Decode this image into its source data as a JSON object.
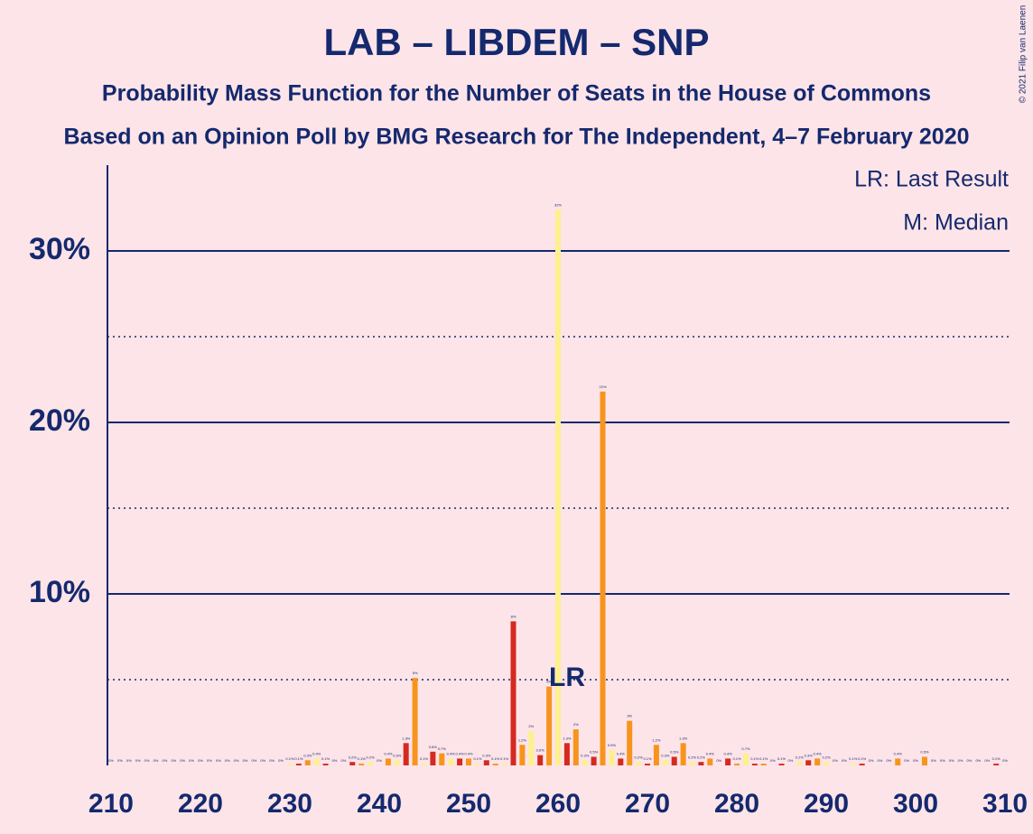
{
  "chart_data": {
    "type": "bar",
    "title": "LAB – LIBDEM – SNP",
    "subtitle": "Probability Mass Function for the Number of Seats in the House of Commons",
    "subtitle2": "Based on an Opinion Poll by BMG Research for The Independent, 4–7 February 2020",
    "copyright": "© 2021 Filip van Laenen",
    "legend": [
      "LR: Last Result",
      "M: Median"
    ],
    "annotations": [
      {
        "text": "LR",
        "x": 260
      }
    ],
    "xlim": [
      209.6,
      310.5
    ],
    "xticks": [
      210,
      220,
      230,
      240,
      250,
      260,
      270,
      280,
      290,
      300,
      310
    ],
    "ylim": [
      0,
      35
    ],
    "yticks": [
      {
        "value": 10,
        "label": "10%"
      },
      {
        "value": 20,
        "label": "20%"
      },
      {
        "value": 30,
        "label": "30%"
      }
    ],
    "minor_gridlines": [
      5,
      15,
      25
    ],
    "grid": true,
    "series": [
      {
        "color": "#d42a20",
        "x": [
          210,
          213,
          216,
          219,
          222,
          225,
          228,
          231,
          234,
          237,
          240,
          243,
          246,
          249,
          252,
          255,
          258,
          261,
          264,
          267,
          270,
          273,
          276,
          279,
          282,
          285,
          288,
          291,
          294,
          297,
          300,
          303,
          306,
          309
        ],
        "values": [
          0,
          0,
          0,
          0,
          0,
          0,
          0,
          0.1,
          0.1,
          0.2,
          0,
          1.3,
          0.8,
          0.4,
          0.3,
          8.4,
          0.6,
          1.3,
          0.5,
          0.4,
          0.1,
          0.5,
          0.2,
          0.4,
          0.1,
          0.1,
          0.3,
          0,
          0.1,
          0,
          0,
          0,
          0,
          0.1
        ],
        "value_labels": [
          "0%",
          "0%",
          "0%",
          "0%",
          "0%",
          "0%",
          "0%",
          "0.1%",
          "0.1%",
          "0.2%",
          "0%",
          "1.3%",
          "0.8%",
          "0.4%",
          "0.3%",
          "8%",
          "0.6%",
          "1.3%",
          "0.5%",
          "0.4%",
          "0.1%",
          "0.5%",
          "0.2%",
          "0.4%",
          "0.1%",
          "0.1%",
          "0.3%",
          "0%",
          "0.1%",
          "0%",
          "0%",
          "0%",
          "0%",
          "0.1%"
        ]
      },
      {
        "color": "#f7941d",
        "x": [
          211,
          214,
          217,
          220,
          223,
          226,
          229,
          232,
          235,
          238,
          241,
          244,
          247,
          250,
          253,
          256,
          259,
          262,
          265,
          268,
          271,
          274,
          277,
          280,
          283,
          286,
          289,
          292,
          295,
          298,
          301,
          304,
          307,
          310
        ],
        "values": [
          0,
          0,
          0,
          0,
          0,
          0,
          0,
          0.3,
          0,
          0.1,
          0.4,
          5.1,
          0.7,
          0.4,
          0.1,
          1.2,
          4.6,
          2.1,
          21.8,
          2.6,
          1.2,
          1.3,
          0.4,
          0.1,
          0.1,
          0,
          0.4,
          0,
          0,
          0.4,
          0.5,
          0,
          0,
          0
        ],
        "value_labels": [
          "0%",
          "0%",
          "0%",
          "0%",
          "0%",
          "0%",
          "0%",
          "0.3%",
          "0%",
          "0.1%",
          "0.4%",
          "5%",
          "0.7%",
          "0.4%",
          "0.1%",
          "1.2%",
          "5%",
          "2%",
          "22%",
          "3%",
          "1.2%",
          "1.3%",
          "0.4%",
          "0.1%",
          "0.1%",
          "0%",
          "0.4%",
          "0%",
          "0%",
          "0.4%",
          "0.5%",
          "0%",
          "0%",
          "0%"
        ]
      },
      {
        "color": "#fdf08e",
        "x": [
          212,
          215,
          218,
          221,
          224,
          227,
          230,
          233,
          236,
          239,
          242,
          245,
          248,
          251,
          254,
          257,
          260,
          263,
          266,
          269,
          272,
          275,
          278,
          281,
          284,
          287,
          290,
          293,
          296,
          299,
          302,
          305,
          308
        ],
        "values": [
          0,
          0,
          0,
          0,
          0,
          0,
          0.1,
          0.4,
          0,
          0.2,
          0.3,
          0.1,
          0.4,
          0.1,
          0.1,
          2,
          32.4,
          0.3,
          0.9,
          0.2,
          0.3,
          0.2,
          0,
          0.7,
          0,
          0.2,
          0.2,
          0.1,
          0,
          0,
          0,
          0,
          0
        ],
        "value_labels": [
          "0%",
          "0%",
          "0%",
          "0%",
          "0%",
          "0%",
          "0.1%",
          "0.4%",
          "0%",
          "0.2%",
          "0.3%",
          "0.1%",
          "0.4%",
          "0.1%",
          "0.1%",
          "2%",
          "32%",
          "0.3%",
          "0.9%",
          "0.2%",
          "0.3%",
          "0.2%",
          "0%",
          "0.7%",
          "0%",
          "0.2%",
          "0.2%",
          "0.1%",
          "0%",
          "0%",
          "0%",
          "0%",
          "0%"
        ]
      }
    ]
  }
}
